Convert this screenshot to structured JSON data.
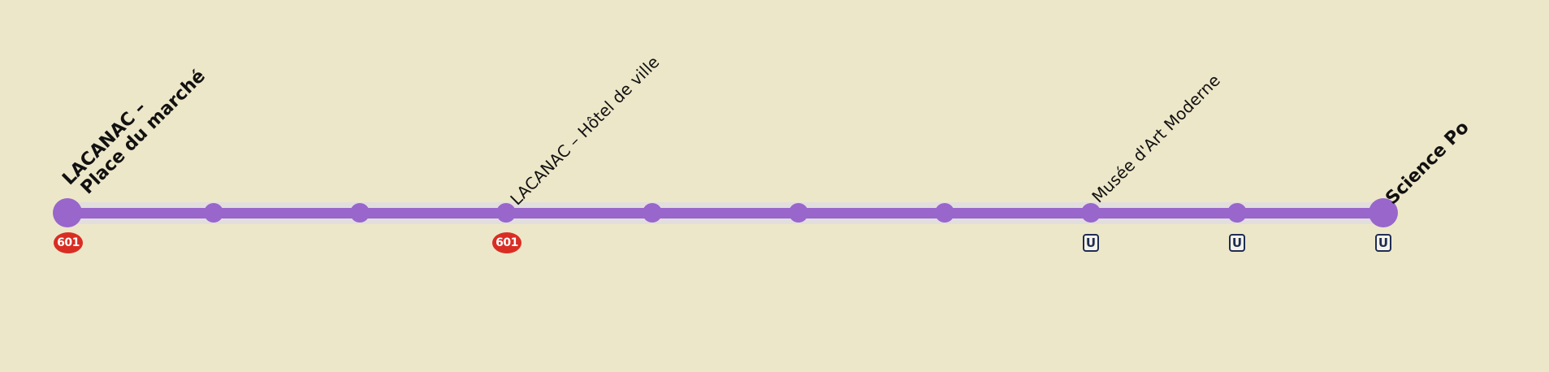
{
  "line_color": "#9966cc",
  "background_color": "#ede7c9",
  "stops": [
    {
      "label_line_1": "LACANAC –",
      "label_line_2": "Place du marché",
      "terminus": true,
      "connections": [
        "bus-601"
      ]
    },
    {
      "terminus": false,
      "connections": []
    },
    {
      "terminus": false,
      "connections": []
    },
    {
      "label_line_1": "LACANAC – Hôtel de ville",
      "terminus": false,
      "connections": [
        "bus-601"
      ]
    },
    {
      "terminus": false,
      "connections": []
    },
    {
      "terminus": false,
      "connections": []
    },
    {
      "terminus": false,
      "connections": []
    },
    {
      "label_line_1": "Musée d'Art Moderne",
      "terminus": false,
      "connections": [
        "metro-U"
      ]
    },
    {
      "terminus": false,
      "connections": [
        "metro-U"
      ]
    },
    {
      "label_line_1": "Science Po",
      "terminus": true,
      "connections": [
        "metro-U"
      ]
    }
  ],
  "bus_connection": {
    "label": "601",
    "color": "#d92d24"
  },
  "metro_connection": {
    "label": "U",
    "color": "#1e2d55"
  }
}
